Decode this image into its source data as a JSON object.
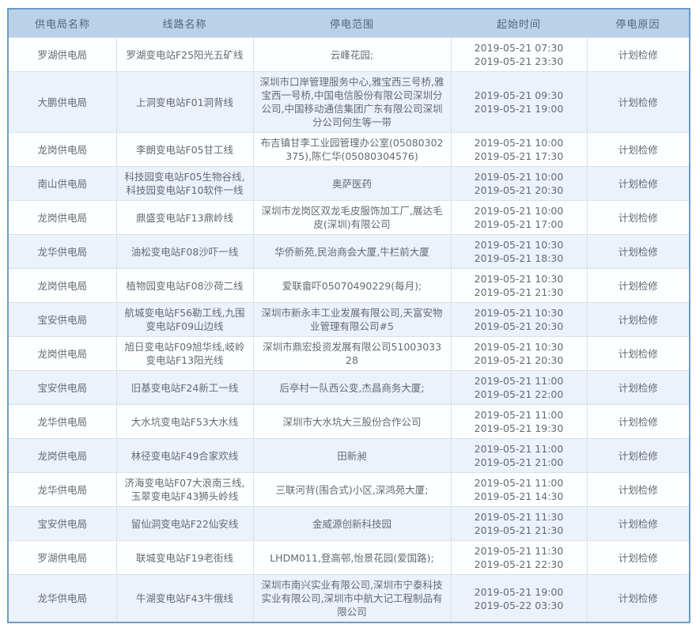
{
  "colors": {
    "border_color": "#6b9ccc",
    "header_bg": "#b9d2e8",
    "header_text": "#53657a",
    "text_color": "#646a73",
    "divider": "#d9e1ea",
    "row_alt_bg": "#ecf2f9",
    "row_bg": "#fdfeff"
  },
  "table": {
    "columns": [
      {
        "key": "bureau",
        "label": "供电局名称"
      },
      {
        "key": "line",
        "label": "线路名称"
      },
      {
        "key": "scope",
        "label": "停电范围"
      },
      {
        "key": "time",
        "label": "起始时间"
      },
      {
        "key": "reason",
        "label": "停电原因"
      }
    ],
    "rows": [
      {
        "bureau": "罗湖供电局",
        "line": "罗湖变电站F25阳光五矿线",
        "scope": "云峰花园;",
        "time_start": "2019-05-21 07:30",
        "time_end": "2019-05-21 23:30",
        "reason": "计划检修"
      },
      {
        "bureau": "大鹏供电局",
        "line": "上洞变电站F01洞背线",
        "scope": "深圳市口岸管理服务中心,雅宝西三号桥,雅宝西一号桥,中国电信股份有限公司深圳分公司,中国移动通信集团广东有限公司深圳分公司何生等一带",
        "time_start": "2019-05-21 09:30",
        "time_end": "2019-05-21 19:00",
        "reason": "计划检修"
      },
      {
        "bureau": "龙岗供电局",
        "line": "李朗变电站F05甘工线",
        "scope": "布吉镇甘李工业园管理办公室(05080302375),陈仁华(05080304576)",
        "time_start": "2019-05-21 10:00",
        "time_end": "2019-05-21 17:30",
        "reason": "计划检修"
      },
      {
        "bureau": "南山供电局",
        "line": "科技园变电站F05生物谷线,科技园变电站F10软件一线",
        "scope": "奥萨医药",
        "time_start": "2019-05-21 10:00",
        "time_end": "2019-05-21 20:30",
        "reason": "计划检修"
      },
      {
        "bureau": "龙岗供电局",
        "line": "鼎盛变电站F13鼎岭线",
        "scope": "深圳市龙岗区双龙毛皮服饰加工厂,展达毛皮(深圳)有限公司",
        "time_start": "2019-05-21 10:00",
        "time_end": "2019-05-21 17:00",
        "reason": "计划检修"
      },
      {
        "bureau": "龙华供电局",
        "line": "油松变电站F08沙吓一线",
        "scope": "华侨新苑,民治商会大厦,牛栏前大厦",
        "time_start": "2019-05-21 10:30",
        "time_end": "2019-05-21 18:30",
        "reason": "计划检修"
      },
      {
        "bureau": "龙岗供电局",
        "line": "植物园变电站F08沙荷二线",
        "scope": "爱联畲吓05070490229(每月);",
        "time_start": "2019-05-21 10:30",
        "time_end": "2019-05-21 21:30",
        "reason": "计划检修"
      },
      {
        "bureau": "宝安供电局",
        "line": "航城变电站F56勒工线,九围变电站F09山边线",
        "scope": "深圳市新永丰工业发展有限公司,天富安物业管理有限公司#5",
        "time_start": "2019-05-21 10:30",
        "time_end": "2019-05-21 20:30",
        "reason": "计划检修"
      },
      {
        "bureau": "龙岗供电局",
        "line": "旭日变电站F09旭华线,岐岭变电站F13阳光线",
        "scope": "深圳市鼎宏投资发展有限公司5100303328",
        "time_start": "2019-05-21 10:30",
        "time_end": "2019-05-21 20:30",
        "reason": "计划检修"
      },
      {
        "bureau": "宝安供电局",
        "line": "旧基变电站F24新工一线",
        "scope": "后亭村一队西公变,杰昌商务大厦;",
        "time_start": "2019-05-21 11:00",
        "time_end": "2019-05-21 22:00",
        "reason": "计划检修"
      },
      {
        "bureau": "龙华供电局",
        "line": "大水坑变电站F53大水线",
        "scope": "深圳市大水坑大三股份合作公司",
        "time_start": "2019-05-21 11:00",
        "time_end": "2019-05-21 19:30",
        "reason": "计划检修"
      },
      {
        "bureau": "龙岗供电局",
        "line": "林径变电站F49合家欢线",
        "scope": "田新昶",
        "time_start": "2019-05-21 11:00",
        "time_end": "2019-05-21 21:00",
        "reason": "计划检修"
      },
      {
        "bureau": "龙华供电局",
        "line": "济海变电站F07大浪南三线,玉翠变电站F43狮头岭线",
        "scope": "三联河背(围合式)小区,深鸿苑大厦;",
        "time_start": "2019-05-21 11:00",
        "time_end": "2019-05-21 14:30",
        "reason": "计划检修"
      },
      {
        "bureau": "宝安供电局",
        "line": "留仙洞变电站F22仙安线",
        "scope": "金威源创新科技园",
        "time_start": "2019-05-21 11:30",
        "time_end": "2019-05-21 21:30",
        "reason": "计划检修"
      },
      {
        "bureau": "罗湖供电局",
        "line": "联城变电站F19老街线",
        "scope": "LHDM011,登高邨,怡景花园(爱国路);",
        "time_start": "2019-05-21 11:30",
        "time_end": "2019-05-21 22:30",
        "reason": "计划检修"
      },
      {
        "bureau": "龙华供电局",
        "line": "牛湖变电站F43牛俄线",
        "scope": "深圳市南兴实业有限公司,深圳市宁泰科技实业有限公司,深圳市中航大记工程制品有限公司",
        "time_start": "2019-05-21 19:00",
        "time_end": "2019-05-22 03:30",
        "reason": "计划检修"
      }
    ]
  }
}
